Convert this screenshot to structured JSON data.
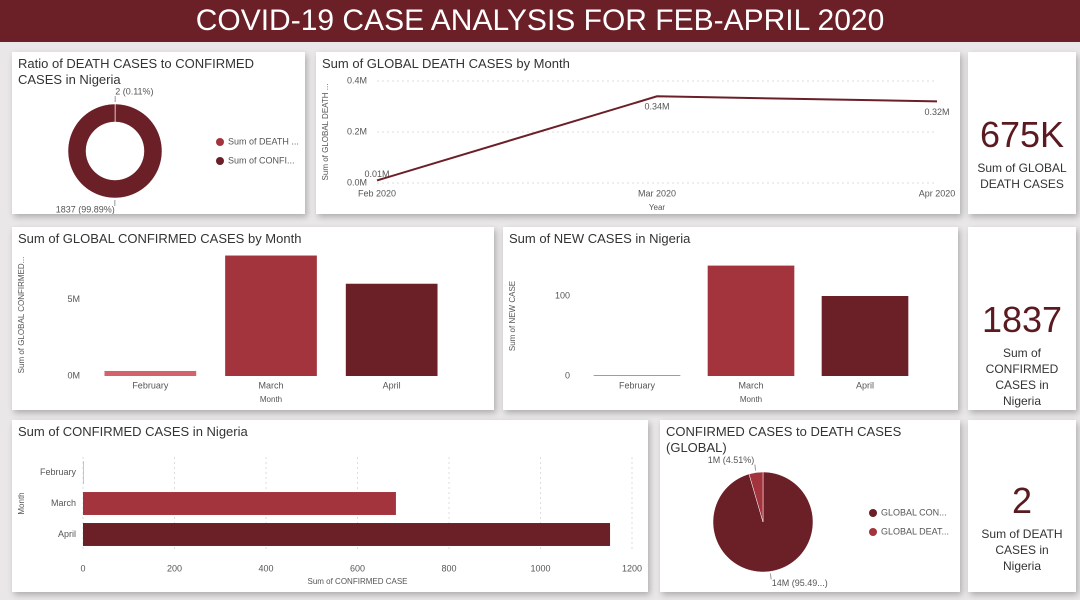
{
  "title": "COVID-19 CASE ANALYSIS FOR FEB-APRIL 2020",
  "chart_data": [
    {
      "type": "donut",
      "title": "Ratio of DEATH CASES to CONFIRMED CASES in Nigeria",
      "categories": [
        "Sum of DEATH ...",
        "Sum of CONFI..."
      ],
      "values": [
        2,
        1837
      ],
      "value_labels": [
        "2 (0.11%)",
        "1837 (99.89%)"
      ],
      "colors": [
        "#a3333d",
        "#6b1f27"
      ]
    },
    {
      "type": "line",
      "title": "Sum of GLOBAL DEATH CASES by Month",
      "categories": [
        "Feb 2020",
        "Mar 2020",
        "Apr 2020"
      ],
      "values": [
        10000,
        340000,
        320000
      ],
      "value_labels": [
        "0.01M",
        "0.34M",
        "0.32M"
      ],
      "color": "#6b1f27",
      "x_label": "Year",
      "y_label": "Sum of GLOBAL DEATH ...",
      "ylim": [
        0,
        400000
      ],
      "yticks": [
        {
          "value": 0,
          "label": "0.0M"
        },
        {
          "value": 200000,
          "label": "0.2M"
        },
        {
          "value": 400000,
          "label": "0.4M"
        }
      ],
      "grid": true
    },
    {
      "type": "bar",
      "title": "Sum of GLOBAL CONFIRMED CASES by Month",
      "categories": [
        "February",
        "March",
        "April"
      ],
      "values": [
        330000,
        7900000,
        6050000
      ],
      "colors": [
        "#d4626b",
        "#a3333d",
        "#6b1f27"
      ],
      "x_label": "Month",
      "y_label": "Sum of GLOBAL CONFIRMED...",
      "ylim": [
        0,
        8000000
      ],
      "yticks": [
        {
          "value": 0,
          "label": "0M"
        },
        {
          "value": 5000000,
          "label": "5M"
        }
      ],
      "grid": false
    },
    {
      "type": "bar",
      "title": "Sum of NEW CASES in Nigeria",
      "categories": [
        "February",
        "March",
        "April"
      ],
      "values": [
        1,
        138,
        100
      ],
      "colors": [
        "#d4626b",
        "#a3333d",
        "#6b1f27"
      ],
      "x_label": "Month",
      "y_label": "Sum of NEW CASE",
      "ylim": [
        0,
        150
      ],
      "yticks": [
        0,
        100
      ],
      "grid": false
    },
    {
      "type": "barh",
      "title": "Sum of CONFIRMED CASES in Nigeria",
      "categories": [
        "February",
        "March",
        "April"
      ],
      "values": [
        1,
        684,
        1152
      ],
      "colors": [
        "#d4626b",
        "#a3333d",
        "#6b1f27"
      ],
      "x_label": "Sum of CONFIRMED CASE",
      "y_label": "Month",
      "xlim": [
        0,
        1200
      ],
      "xticks": [
        0,
        200,
        400,
        600,
        800,
        1000,
        1200
      ],
      "grid": true
    },
    {
      "type": "pie",
      "title": "CONFIRMED CASES to DEATH CASES (GLOBAL)",
      "categories": [
        "GLOBAL CON...",
        "GLOBAL DEAT..."
      ],
      "values": [
        14292000,
        675000
      ],
      "value_labels": [
        "14M (95.49...)",
        "1M (4.51%)"
      ],
      "colors": [
        "#6b1f27",
        "#a3333d"
      ]
    }
  ],
  "cards": [
    {
      "value": "675K",
      "label": "Sum of GLOBAL DEATH CASES"
    },
    {
      "value": "1837",
      "label": "Sum of CONFIRMED CASES in Nigeria"
    },
    {
      "value": "2",
      "label": "Sum of DEATH CASES in Nigeria"
    }
  ]
}
